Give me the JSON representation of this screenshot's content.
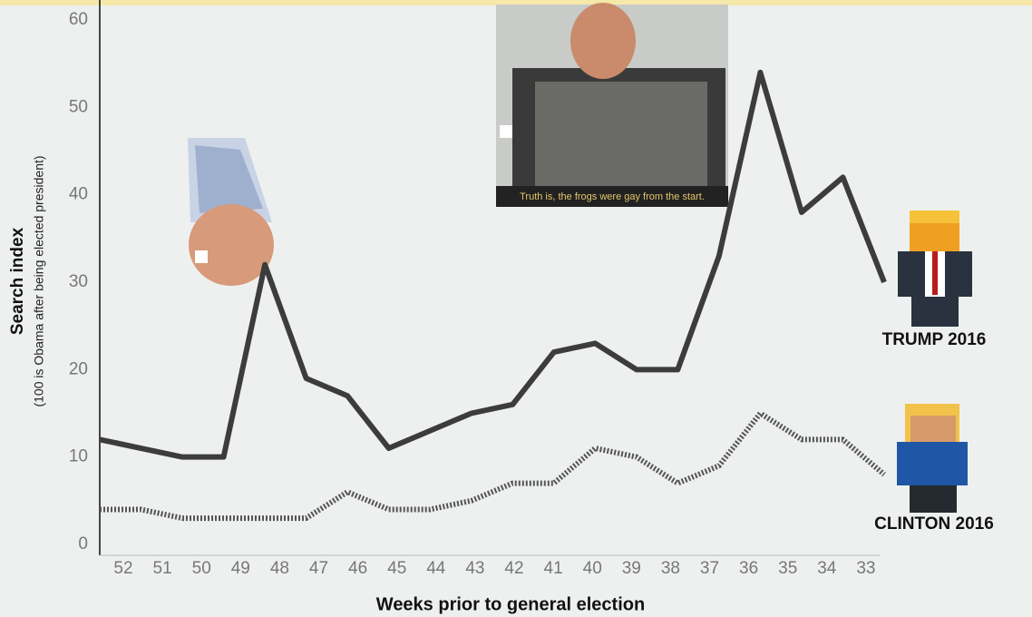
{
  "chart_data": {
    "type": "line",
    "y_label": "Search index",
    "y_sublabel": "(100 is Obama after being elected president)",
    "x_label": "Weeks prior to general election",
    "annotation": "Truth is, the frogs were gay from the start.",
    "categories": [
      "52",
      "51",
      "50",
      "49",
      "48",
      "47",
      "46",
      "45",
      "44",
      "43",
      "42",
      "41",
      "40",
      "39",
      "38",
      "37",
      "36",
      "35",
      "34",
      "33"
    ],
    "series": [
      {
        "name": "TRUMP 2016",
        "color": "#3c3c3c",
        "style": "solid",
        "values": [
          12,
          11,
          10,
          10,
          32,
          19,
          17,
          11,
          13,
          15,
          16,
          22,
          23,
          20,
          20,
          33,
          54,
          38,
          42,
          30
        ]
      },
      {
        "name": "CLINTON 2016",
        "color": "#555555",
        "style": "dotted",
        "values": [
          4,
          4,
          3,
          3,
          3,
          3,
          6,
          4,
          4,
          5,
          7,
          7,
          11,
          10,
          7,
          9,
          15,
          12,
          12,
          8
        ]
      }
    ],
    "ylim": [
      0,
      60
    ],
    "yticks": [
      0,
      10,
      20,
      30,
      40,
      50,
      60
    ]
  }
}
